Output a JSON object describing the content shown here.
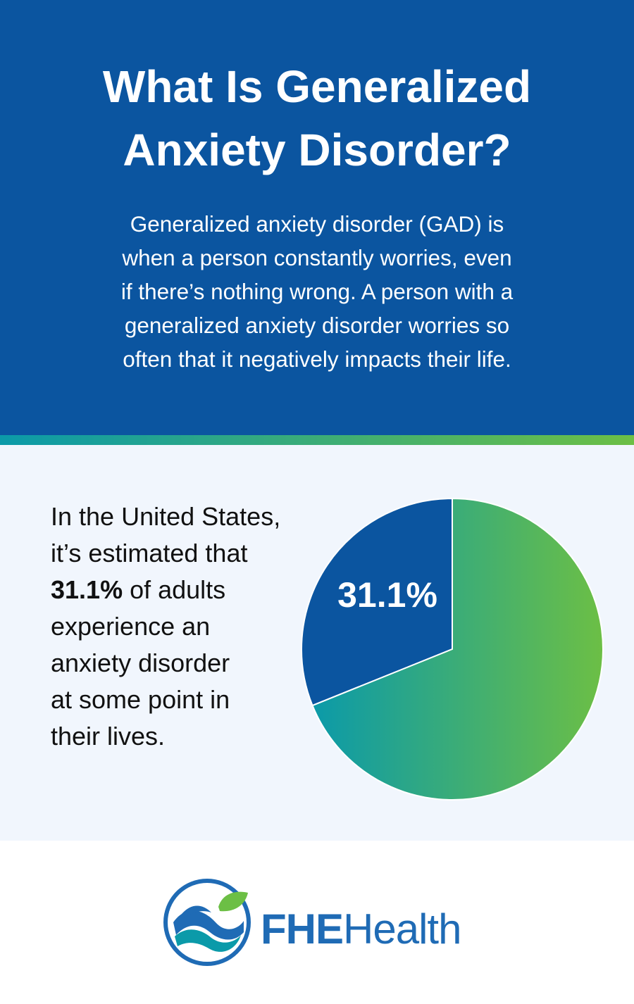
{
  "header": {
    "title_line1": "What Is Generalized",
    "title_line2": "Anxiety Disorder?",
    "intro_lines": [
      "Generalized anxiety disorder (GAD) is",
      "when a person constantly worries, even",
      "if there’s nothing wrong. A person with a",
      "generalized anxiety disorder worries so",
      "often that it negatively impacts their life."
    ]
  },
  "stat": {
    "line1": "In the United States,",
    "line2": "it’s estimated that",
    "highlight": "31.1%",
    "line3_rest": " of adults",
    "line4": "experience an",
    "line5": "anxiety disorder",
    "line6": "at some point in",
    "line7": "their lives."
  },
  "chart_data": {
    "type": "pie",
    "slices": [
      {
        "label": "31.1%",
        "value": 31.1,
        "color": "#0b55a0"
      },
      {
        "label": "",
        "value": 68.9,
        "color": "#3aae7a"
      }
    ],
    "gradient_colors": [
      "#0b9aa9",
      "#6cbf45"
    ]
  },
  "brand": {
    "strong": "FHE",
    "rest": "Health",
    "icon": "wave-leaf-logo-icon"
  },
  "colors": {
    "header_bg": "#0b55a0",
    "panel_bg": "#f1f6fd",
    "brand_blue": "#1f6bb5",
    "leaf_green": "#6cbf45",
    "teal": "#0b9aa9"
  }
}
